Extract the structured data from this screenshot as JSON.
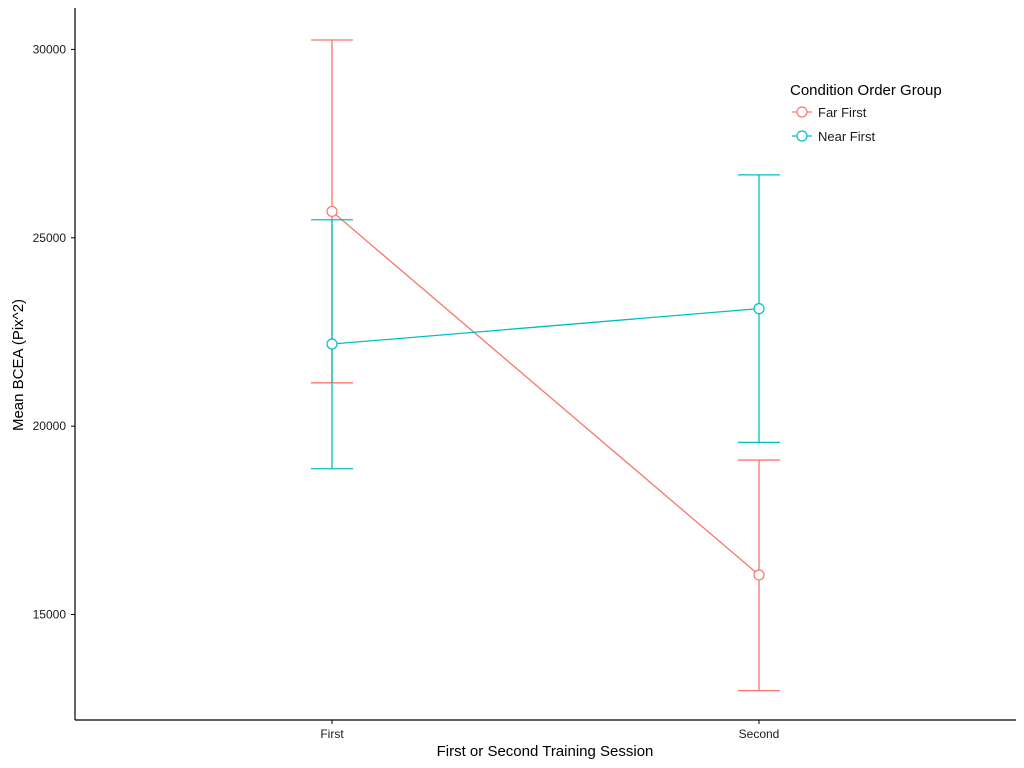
{
  "chart_data": {
    "type": "line",
    "title": "",
    "xlabel": "First or Second Training Session",
    "ylabel": "Mean BCEA (Pix^2)",
    "categories": [
      "First",
      "Second"
    ],
    "ylim": [
      12200,
      31100
    ],
    "yticks": [
      15000,
      20000,
      25000,
      30000
    ],
    "ytick_labels": [
      "15000",
      "20000",
      "25000",
      "30000"
    ],
    "grid": false,
    "legend": {
      "title": "Condition Order Group",
      "placement": "top-right"
    },
    "series": [
      {
        "name": "Far First",
        "color": "#F8766D",
        "values": [
          25700,
          16050
        ],
        "lower": [
          21150,
          12980
        ],
        "upper": [
          30250,
          19100
        ]
      },
      {
        "name": "Near First",
        "color": "#00BFC4",
        "values": [
          22180,
          23120
        ],
        "lower": [
          18870,
          19570
        ],
        "upper": [
          25480,
          26670
        ]
      }
    ]
  }
}
